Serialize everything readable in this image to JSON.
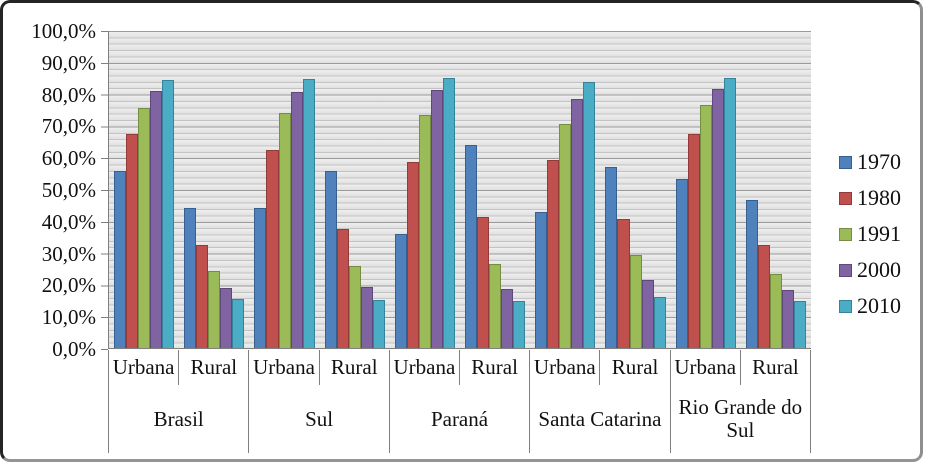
{
  "accent_colors": {
    "frame_border": "#242424",
    "axis_line": "#7f7f7f",
    "plot_band_light": "#eeeeee",
    "plot_band_dark": "#e0e0e0",
    "gridline_major": "#9a9a9a",
    "gridline_minor": "#c3c3c3",
    "text": "#111111"
  },
  "chart_data": {
    "type": "bar",
    "title": "",
    "xlabel": "",
    "ylabel": "",
    "ylim": [
      0,
      100
    ],
    "y_major_step": 10,
    "y_minor_step": 2,
    "grid": "horizontal-striped",
    "legend_position": "right",
    "y_ticks": [
      "100,0%",
      "90,0%",
      "80,0%",
      "70,0%",
      "60,0%",
      "50,0%",
      "40,0%",
      "30,0%",
      "20,0%",
      "10,0%",
      "0,0%"
    ],
    "category_labels": [
      "Urbana",
      "Rural"
    ],
    "regions": [
      "Brasil",
      "Sul",
      "Paraná",
      "Santa Catarina",
      "Rio Grande do Sul"
    ],
    "column_order": [
      "Brasil-Urbana",
      "Brasil-Rural",
      "Sul-Urbana",
      "Sul-Rural",
      "Paraná-Urbana",
      "Paraná-Rural",
      "Santa Catarina-Urbana",
      "Santa Catarina-Rural",
      "Rio Grande do Sul-Urbana",
      "Rio Grande do Sul-Rural"
    ],
    "series": [
      {
        "name": "1970",
        "color": "#4F81BD",
        "border_color": "#38608E",
        "values": [
          55.9,
          44.1,
          44.3,
          55.7,
          36.1,
          63.9,
          42.9,
          57.1,
          53.3,
          46.7
        ]
      },
      {
        "name": "1980",
        "color": "#C0504D",
        "border_color": "#923C3A",
        "values": [
          67.6,
          32.4,
          62.4,
          37.6,
          58.6,
          41.4,
          59.4,
          40.6,
          67.5,
          32.5
        ]
      },
      {
        "name": "1991",
        "color": "#9BBB59",
        "border_color": "#748D40",
        "values": [
          75.6,
          24.4,
          74.1,
          25.9,
          73.4,
          26.6,
          70.6,
          29.4,
          76.6,
          23.4
        ]
      },
      {
        "name": "2000",
        "color": "#8064A2",
        "border_color": "#5F497A",
        "values": [
          81.2,
          18.8,
          80.9,
          19.1,
          81.4,
          18.6,
          78.7,
          21.3,
          81.6,
          18.4
        ]
      },
      {
        "name": "2010",
        "color": "#4BACC6",
        "border_color": "#368298",
        "values": [
          84.4,
          15.6,
          84.9,
          15.1,
          85.3,
          14.7,
          84.0,
          16.0,
          85.1,
          14.9
        ]
      }
    ]
  }
}
